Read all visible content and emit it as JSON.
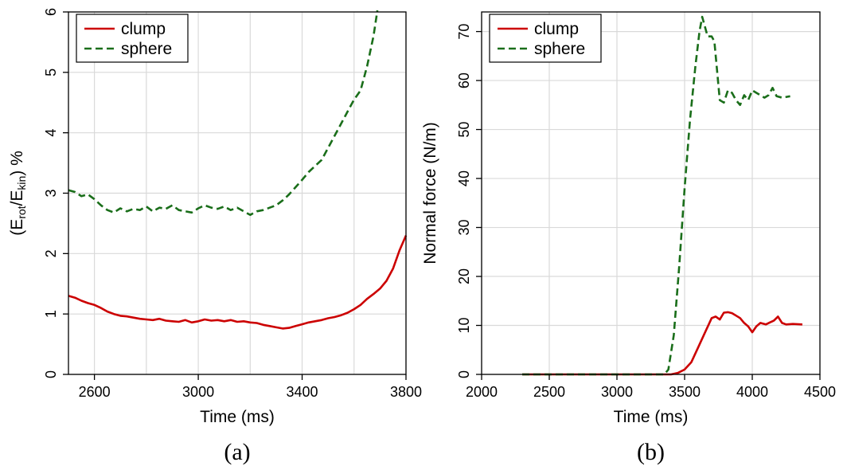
{
  "chart_data": [
    {
      "type": "line",
      "panel_label": "(a)",
      "xlabel": "Time (ms)",
      "ylabel": {
        "prefix": "(E",
        "sub1": "rot",
        "mid": "/E",
        "sub2": "kin",
        "suffix": ") %"
      },
      "xlim": [
        2500,
        3800
      ],
      "ylim": [
        0,
        6
      ],
      "xticks": [
        2600,
        3000,
        3400,
        3800
      ],
      "xgrid": [
        2600,
        2800,
        3000,
        3200,
        3400,
        3600,
        3800
      ],
      "yticks": [
        0,
        1,
        2,
        3,
        4,
        5,
        6
      ],
      "grid": true,
      "legend": "top-left",
      "series": [
        {
          "name": "clump",
          "color": "#cc0000",
          "dash": "solid",
          "x": [
            2500,
            2525,
            2550,
            2575,
            2600,
            2625,
            2650,
            2675,
            2700,
            2725,
            2750,
            2775,
            2800,
            2825,
            2850,
            2875,
            2900,
            2925,
            2950,
            2975,
            3000,
            3025,
            3050,
            3075,
            3100,
            3125,
            3150,
            3175,
            3200,
            3225,
            3250,
            3275,
            3300,
            3325,
            3350,
            3375,
            3400,
            3425,
            3450,
            3475,
            3500,
            3525,
            3550,
            3575,
            3600,
            3625,
            3650,
            3675,
            3700,
            3725,
            3750,
            3775,
            3800
          ],
          "y": [
            1.3,
            1.27,
            1.22,
            1.18,
            1.15,
            1.1,
            1.04,
            1.0,
            0.97,
            0.96,
            0.94,
            0.92,
            0.91,
            0.9,
            0.92,
            0.89,
            0.88,
            0.87,
            0.9,
            0.86,
            0.88,
            0.91,
            0.89,
            0.9,
            0.88,
            0.9,
            0.87,
            0.88,
            0.86,
            0.85,
            0.82,
            0.8,
            0.78,
            0.76,
            0.77,
            0.8,
            0.83,
            0.86,
            0.88,
            0.9,
            0.93,
            0.95,
            0.98,
            1.02,
            1.08,
            1.15,
            1.25,
            1.33,
            1.42,
            1.55,
            1.75,
            2.05,
            2.3
          ]
        },
        {
          "name": "sphere",
          "color": "#1a6e1a",
          "dash": "dashed",
          "x": [
            2500,
            2525,
            2550,
            2575,
            2600,
            2625,
            2650,
            2675,
            2700,
            2725,
            2750,
            2775,
            2800,
            2825,
            2850,
            2875,
            2900,
            2925,
            2950,
            2975,
            3000,
            3025,
            3050,
            3075,
            3100,
            3125,
            3150,
            3175,
            3200,
            3225,
            3250,
            3275,
            3300,
            3325,
            3350,
            3375,
            3400,
            3425,
            3450,
            3475,
            3500,
            3525,
            3550,
            3575,
            3600,
            3625,
            3650,
            3675,
            3690
          ],
          "y": [
            3.05,
            3.02,
            2.95,
            2.98,
            2.9,
            2.8,
            2.72,
            2.68,
            2.75,
            2.7,
            2.74,
            2.72,
            2.78,
            2.7,
            2.76,
            2.74,
            2.8,
            2.72,
            2.7,
            2.68,
            2.75,
            2.8,
            2.76,
            2.74,
            2.78,
            2.72,
            2.76,
            2.7,
            2.64,
            2.7,
            2.72,
            2.76,
            2.8,
            2.88,
            2.98,
            3.1,
            3.22,
            3.35,
            3.45,
            3.55,
            3.75,
            3.95,
            4.15,
            4.35,
            4.55,
            4.7,
            5.1,
            5.6,
            6.05
          ]
        }
      ]
    },
    {
      "type": "line",
      "panel_label": "(b)",
      "xlabel": "Time (ms)",
      "ylabel": "Normal force (N/m)",
      "xlim": [
        2000,
        4500
      ],
      "ylim": [
        0,
        74
      ],
      "xticks": [
        2000,
        2500,
        3000,
        3500,
        4000,
        4500
      ],
      "yticks": [
        0,
        10,
        20,
        30,
        40,
        50,
        60,
        70
      ],
      "grid": true,
      "legend": "top-left",
      "series": [
        {
          "name": "clump",
          "color": "#cc0000",
          "dash": "solid",
          "x": [
            2300,
            2600,
            2900,
            3200,
            3400,
            3450,
            3500,
            3550,
            3600,
            3650,
            3700,
            3730,
            3760,
            3790,
            3820,
            3850,
            3880,
            3910,
            3940,
            3970,
            4000,
            4030,
            4060,
            4100,
            4130,
            4160,
            4190,
            4220,
            4250,
            4300,
            4370
          ],
          "y": [
            0,
            0,
            0,
            0,
            0,
            0.3,
            1.0,
            2.5,
            5.5,
            8.5,
            11.5,
            11.8,
            11.2,
            12.6,
            12.7,
            12.5,
            12.0,
            11.5,
            10.5,
            9.8,
            8.6,
            9.8,
            10.5,
            10.2,
            10.6,
            11.0,
            11.8,
            10.5,
            10.2,
            10.3,
            10.2
          ]
        },
        {
          "name": "sphere",
          "color": "#1a6e1a",
          "dash": "dashed",
          "x": [
            2300,
            2600,
            2900,
            3200,
            3350,
            3380,
            3420,
            3460,
            3500,
            3540,
            3580,
            3610,
            3630,
            3650,
            3670,
            3700,
            3720,
            3740,
            3760,
            3790,
            3820,
            3850,
            3880,
            3910,
            3940,
            3970,
            4000,
            4030,
            4060,
            4090,
            4120,
            4150,
            4180,
            4220,
            4280
          ],
          "y": [
            0,
            0,
            0,
            0,
            0,
            1.0,
            8.0,
            22.0,
            38.0,
            52.0,
            63.0,
            70.0,
            73.0,
            71.0,
            69.0,
            69.0,
            68.0,
            62.0,
            56.0,
            55.5,
            58.0,
            57.5,
            56.0,
            55.0,
            57.0,
            56.0,
            58.0,
            57.5,
            57.0,
            56.5,
            57.0,
            58.5,
            56.8,
            56.5,
            56.8
          ]
        }
      ]
    }
  ]
}
